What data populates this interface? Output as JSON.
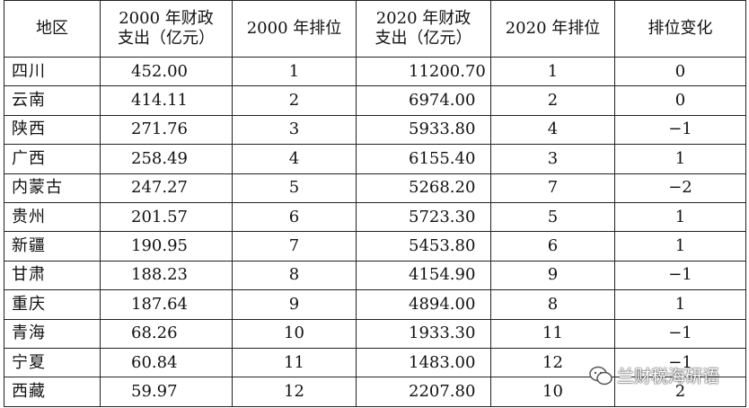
{
  "table": {
    "headers": [
      {
        "line1": "地区",
        "line2": ""
      },
      {
        "line1": "2000 年财政",
        "line2": "支出（亿元）"
      },
      {
        "line1": "2000 年排位",
        "line2": ""
      },
      {
        "line1": "2020 年财政",
        "line2": "支出（亿元）"
      },
      {
        "line1": "2020 年排位",
        "line2": ""
      },
      {
        "line1": "排位变化",
        "line2": ""
      }
    ],
    "rows": [
      [
        "四川",
        "452.00",
        "1",
        "11200.70",
        "1",
        "0"
      ],
      [
        "云南",
        "414.11",
        "2",
        "6974.00",
        "2",
        "0"
      ],
      [
        "陕西",
        "271.76",
        "3",
        "5933.80",
        "4",
        "−1"
      ],
      [
        "广西",
        "258.49",
        "4",
        "6155.40",
        "3",
        "1"
      ],
      [
        "内蒙古",
        "247.27",
        "5",
        "5268.20",
        "7",
        "−2"
      ],
      [
        "贵州",
        "201.57",
        "6",
        "5723.30",
        "5",
        "1"
      ],
      [
        "新疆",
        "190.95",
        "7",
        "5453.80",
        "6",
        "1"
      ],
      [
        "甘肃",
        "188.23",
        "8",
        "4154.90",
        "9",
        "−1"
      ],
      [
        "重庆",
        "187.64",
        "9",
        "4894.00",
        "8",
        "1"
      ],
      [
        "青海",
        "68.26",
        "10",
        "1933.30",
        "11",
        "−1"
      ],
      [
        "宁夏",
        "60.84",
        "11",
        "1483.00",
        "12",
        "−1"
      ],
      [
        "西藏",
        "59.97",
        "12",
        "2207.80",
        "10",
        "2"
      ]
    ]
  },
  "watermark": {
    "text": "兰财税海研语",
    "icon": "wechat-bubble-icon"
  }
}
